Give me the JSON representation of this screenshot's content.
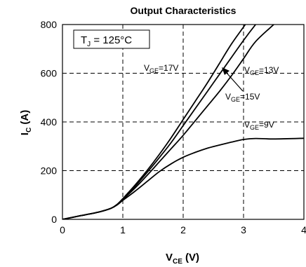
{
  "chart_data": {
    "type": "line",
    "title": "Output Characteristics",
    "xlabel": {
      "main": "V",
      "sub": "CE",
      "unit": " (V)"
    },
    "ylabel": {
      "main": "I",
      "sub": "C",
      "unit": " (A)"
    },
    "xlim": [
      0,
      4
    ],
    "ylim": [
      0,
      800
    ],
    "xticks": [
      0,
      1,
      2,
      3,
      4
    ],
    "yticks": [
      0,
      200,
      400,
      600,
      800
    ],
    "grid": true,
    "annotation": {
      "main": "T",
      "sub": "J",
      "rest": " = 125°C"
    },
    "series": [
      {
        "label": {
          "main": "V",
          "sub": "GE",
          "rest": "=17V"
        },
        "x": [
          0,
          0.3,
          0.6,
          0.8,
          0.9,
          1.0,
          1.2,
          1.4,
          1.6,
          1.8,
          2.0,
          2.2,
          2.4,
          2.6,
          2.8,
          3.0,
          3.2
        ],
        "y": [
          0,
          15,
          30,
          45,
          60,
          85,
          140,
          200,
          265,
          335,
          410,
          485,
          560,
          640,
          720,
          790,
          860
        ]
      },
      {
        "label": {
          "main": "V",
          "sub": "GE",
          "rest": "=15V"
        },
        "x": [
          0,
          0.3,
          0.6,
          0.8,
          0.9,
          1.0,
          1.2,
          1.4,
          1.6,
          1.8,
          2.0,
          2.2,
          2.4,
          2.6,
          2.8,
          3.0,
          3.2,
          3.4
        ],
        "y": [
          0,
          15,
          30,
          45,
          60,
          84,
          135,
          192,
          252,
          315,
          385,
          455,
          525,
          595,
          665,
          735,
          800,
          860
        ]
      },
      {
        "label": {
          "main": "V",
          "sub": "GE",
          "rest": "=13V"
        },
        "x": [
          0,
          0.3,
          0.6,
          0.8,
          0.9,
          1.0,
          1.2,
          1.4,
          1.6,
          1.8,
          2.0,
          2.2,
          2.4,
          2.6,
          2.8,
          3.0,
          3.2,
          3.5
        ],
        "y": [
          0,
          15,
          30,
          45,
          60,
          82,
          128,
          180,
          235,
          290,
          345,
          405,
          465,
          525,
          590,
          660,
          730,
          800
        ]
      },
      {
        "label": {
          "main": "V",
          "sub": "GE",
          "rest": "=9V"
        },
        "x": [
          0,
          0.3,
          0.6,
          0.8,
          0.9,
          1.0,
          1.2,
          1.4,
          1.6,
          1.8,
          2.0,
          2.2,
          2.4,
          2.6,
          2.8,
          3.0,
          3.2,
          3.5,
          4.0
        ],
        "y": [
          0,
          15,
          30,
          45,
          58,
          78,
          115,
          155,
          195,
          228,
          255,
          275,
          292,
          305,
          317,
          328,
          332,
          330,
          333
        ]
      }
    ]
  }
}
